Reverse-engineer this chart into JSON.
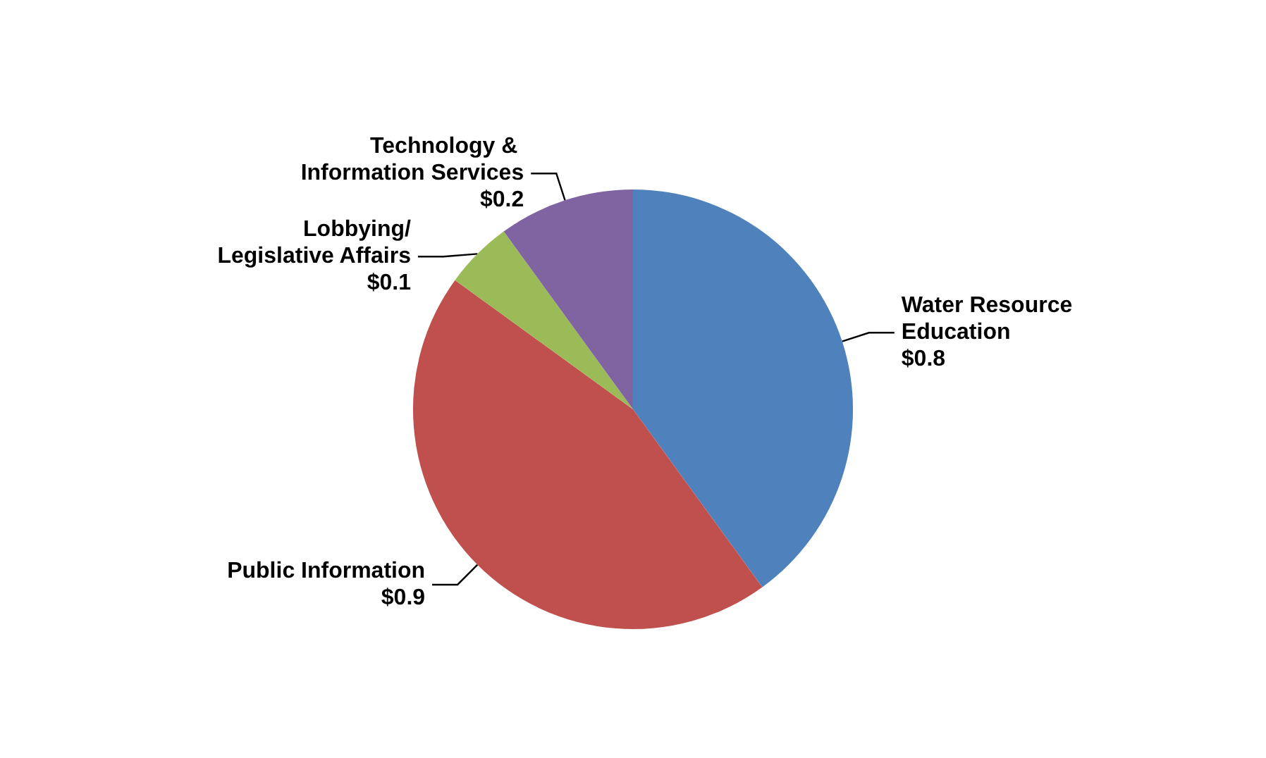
{
  "chart_data": {
    "type": "pie",
    "categories": [
      "Water Resource Education",
      "Public Information",
      "Lobbying/Legislative Affairs",
      "Technology & Information Services"
    ],
    "values": [
      0.8,
      0.9,
      0.1,
      0.2
    ],
    "value_labels": [
      "$0.8",
      "$0.9",
      "$0.1",
      "$0.2"
    ],
    "colors": [
      "#4f81bd",
      "#c0504d",
      "#9bbb59",
      "#8064a2"
    ],
    "legend": false
  }
}
